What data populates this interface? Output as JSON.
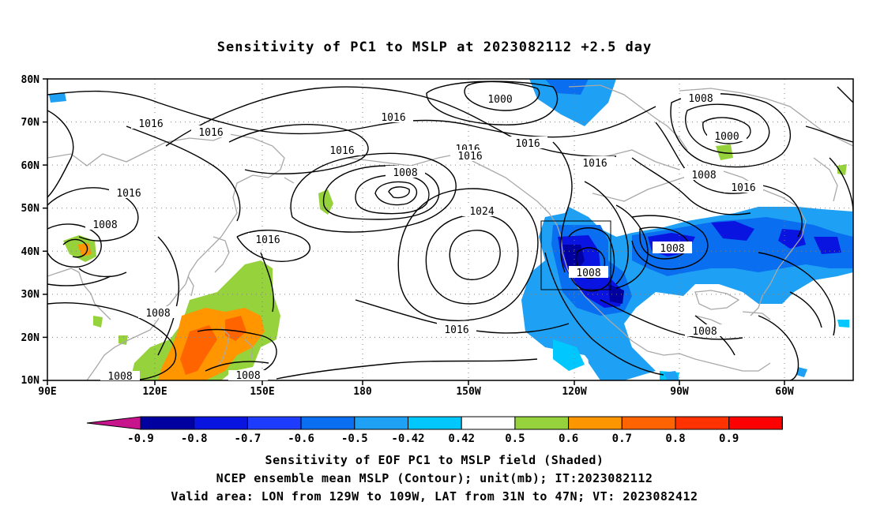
{
  "title": "Sensitivity of PC1 to MSLP at 2023082112 +2.5 day",
  "axes": {
    "lat_labels": [
      "80N",
      "70N",
      "60N",
      "50N",
      "40N",
      "30N",
      "20N",
      "10N"
    ],
    "lon_labels": [
      "90E",
      "120E",
      "150E",
      "180",
      "150W",
      "120W",
      "90W",
      "60W"
    ]
  },
  "contour_labels": [
    {
      "text": "1000"
    },
    {
      "text": "1016"
    },
    {
      "text": "1008"
    },
    {
      "text": "1016"
    },
    {
      "text": "1016"
    },
    {
      "text": "1016"
    },
    {
      "text": "1000"
    },
    {
      "text": "1016"
    },
    {
      "text": "1016"
    },
    {
      "text": "1016"
    },
    {
      "text": "1008"
    },
    {
      "text": "1016"
    },
    {
      "text": "1016"
    },
    {
      "text": "1008"
    },
    {
      "text": "1024"
    },
    {
      "text": "1016"
    },
    {
      "text": "1008"
    },
    {
      "text": "1008"
    },
    {
      "text": "1008"
    },
    {
      "text": "1016"
    },
    {
      "text": "1008"
    },
    {
      "text": "1008"
    },
    {
      "text": "1008"
    },
    {
      "text": "1016"
    }
  ],
  "colorbar": {
    "labels": [
      "-0.9",
      "-0.8",
      "-0.7",
      "-0.6",
      "-0.5",
      "-0.42",
      "0.42",
      "0.5",
      "0.6",
      "0.7",
      "0.8",
      "0.9"
    ],
    "colors": [
      "#0000a0",
      "#0a14e0",
      "#1e3cff",
      "#0a6ef0",
      "#1ea0f5",
      "#00c8ff",
      "#ffffff",
      "#96d23c",
      "#ff9600",
      "#ff6400",
      "#ff3200",
      "#ff0000"
    ],
    "end_low": "#c8148c",
    "end_high": "#f5a0c8"
  },
  "caption_lines": [
    "Sensitivity of EOF PC1 to MSLP field (Shaded)",
    "NCEP ensemble mean MSLP (Contour); unit(mb); IT:2023082112",
    "Valid area: LON from 129W to 109W, LAT from 31N to 47N; VT: 2023082412"
  ]
}
